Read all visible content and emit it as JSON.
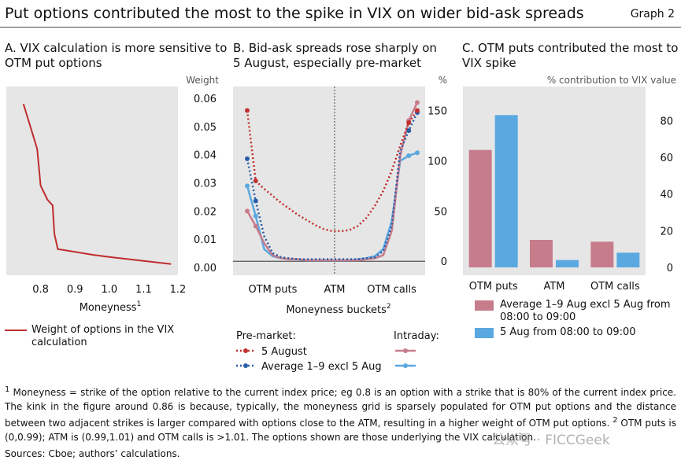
{
  "header": {
    "title": "Put options contributed the most to the spike in VIX on wider bid-ask spreads",
    "graph_label": "Graph 2"
  },
  "colors": {
    "panel_bg": "#e6e6e6",
    "red_line": "#bf2e2e",
    "pink": "#c77c8c",
    "blue": "#5aa8e0",
    "dark_red": "#c0302e",
    "dark_blue": "#2a5ca8"
  },
  "panels": {
    "a": {
      "title_line1": "A. VIX calculation is more sensitive to",
      "title_line2": "OTM put options",
      "legend": "Weight of options in the VIX calculation"
    },
    "b": {
      "title_line1": "B. Bid-ask spreads rose sharply on",
      "title_line2": "5 August, especially pre-market",
      "legend": {
        "premarket_title": "Pre-market:",
        "intraday_title": "Intraday:",
        "series1": "5 August",
        "series2": "Average 1–9 excl 5 Aug"
      }
    },
    "c": {
      "title_line1": "C. OTM puts contributed the most to",
      "title_line2": "VIX spike",
      "legend": {
        "series1": "Average 1–9 Aug excl 5 Aug from 08:00 to 09:00",
        "series1_line1": "Average 1–9 Aug excl 5 Aug from",
        "series1_line2": "08:00 to 09:00",
        "series2": "5 Aug from 08:00 to 09:00"
      }
    }
  },
  "footnote": {
    "sup1": "1",
    "text1": "Moneyness = strike of the option relative to the current index price; eg 0.8 is an option with a strike that is 80% of the current index price. The kink in the figure around 0.86 is because, typically, the moneyness grid is sparsely populated for OTM put options and the distance between two adjacent strikes is larger compared with options close to the ATM, resulting in a higher weight of OTM put options.",
    "sup2": "2",
    "text2": "OTM puts is (0,0.99); ATM is (0.99,1.01) and OTM calls is >1.01. The options shown are those underlying the VIX calculation."
  },
  "sources": "Sources: Cboe; authors’ calculations.",
  "watermark": "公众号 · FICCGeek",
  "chart_data": [
    {
      "type": "line",
      "title": "A. VIX calculation is more sensitive to OTM put options",
      "xlabel": "Moneyness",
      "xlabel_sup": "1",
      "ylabel": "Weight",
      "xlim": [
        0.7,
        1.2
      ],
      "ylim": [
        0,
        0.06
      ],
      "xticks": [
        "0.8",
        "0.9",
        "1.0",
        "1.1",
        "1.2"
      ],
      "yticks": [
        "0.00",
        "0.01",
        "0.02",
        "0.03",
        "0.04",
        "0.05",
        "0.06"
      ],
      "series": [
        {
          "name": "Weight of options in the VIX calculation",
          "x": [
            0.75,
            0.77,
            0.79,
            0.8,
            0.82,
            0.835,
            0.84,
            0.85,
            0.9,
            0.95,
            1.0,
            1.05,
            1.1,
            1.15,
            1.18
          ],
          "y": [
            0.058,
            0.05,
            0.042,
            0.029,
            0.024,
            0.022,
            0.012,
            0.0065,
            0.0055,
            0.0045,
            0.0037,
            0.003,
            0.0023,
            0.0016,
            0.0012
          ]
        }
      ]
    },
    {
      "type": "line",
      "title": "B. Bid-ask spreads rose sharply on 5 August, especially pre-market",
      "xlabel": "Moneyness buckets",
      "xlabel_sup": "2",
      "ylabel": "%",
      "ylim": [
        -10,
        170
      ],
      "xticks": [
        "OTM puts",
        "ATM",
        "OTM calls"
      ],
      "yticks": [
        "0",
        "50",
        "100",
        "150"
      ],
      "x": [
        0,
        1,
        2,
        3,
        4,
        5,
        6,
        7,
        8,
        9,
        10,
        11,
        12,
        13,
        14,
        15,
        16,
        17,
        18,
        19,
        20
      ],
      "series": [
        {
          "name": "5 August",
          "group": "Pre-market",
          "values": [
            150,
            80,
            72,
            65,
            58,
            52,
            46,
            41,
            36,
            32,
            30,
            30,
            31,
            35,
            43,
            55,
            70,
            90,
            115,
            138,
            150
          ]
        },
        {
          "name": "Average 1–9 excl 5 Aug",
          "group": "Pre-market",
          "values": [
            102,
            60,
            25,
            8,
            4,
            3,
            2,
            2,
            2,
            2,
            2,
            2,
            2,
            2,
            3,
            4,
            10,
            35,
            110,
            130,
            148
          ]
        },
        {
          "name": "5 August",
          "group": "Intraday",
          "values": [
            50,
            35,
            18,
            6,
            3,
            2,
            2,
            1,
            1,
            1,
            1,
            1,
            1,
            1,
            2,
            3,
            6,
            30,
            105,
            140,
            158
          ]
        },
        {
          "name": "Average 1–9 excl 5 Aug",
          "group": "Intraday",
          "values": [
            75,
            45,
            12,
            5,
            3,
            2,
            2,
            1,
            1,
            1,
            1,
            1,
            1,
            2,
            3,
            5,
            12,
            40,
            100,
            105,
            108
          ]
        }
      ]
    },
    {
      "type": "bar",
      "title": "C. OTM puts contributed the most to VIX spike",
      "ylabel": "% contribution to VIX value",
      "ylim": [
        -2,
        92
      ],
      "categories": [
        "OTM puts",
        "ATM",
        "OTM calls"
      ],
      "yticks": [
        "0",
        "20",
        "40",
        "60",
        "80"
      ],
      "series": [
        {
          "name": "Average 1–9 Aug excl 5 Aug from 08:00 to 09:00",
          "values": [
            64,
            15,
            14
          ]
        },
        {
          "name": "5 Aug from 08:00 to 09:00",
          "values": [
            83,
            4,
            8
          ]
        }
      ]
    }
  ]
}
